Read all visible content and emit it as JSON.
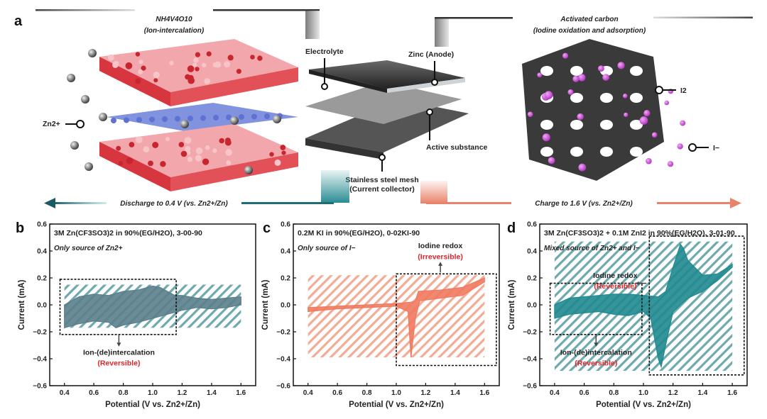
{
  "panel_a": {
    "letter": "a",
    "left_title": "NH4V4O10",
    "left_subtitle": "(Ion-intercalation)",
    "right_title": "Activated carbon",
    "right_subtitle": "(Iodine oxidation and adsorption)",
    "label_zn_ion": "Zn2+",
    "label_electrolyte": "Electrolyte",
    "label_zinc_anode": "Zinc (Anode)",
    "label_active_substance": "Active substance",
    "label_mesh_line1": "Stainless steel mesh",
    "label_mesh_line2": "(Current collector)",
    "label_i2": "I2",
    "label_iodide": "I−",
    "discharge_label": "Discharge to 0.4 V (vs. Zn2+/Zn)",
    "charge_label": "Charge to 1.6 V (vs. Zn2+/Zn)",
    "colors": {
      "discharge": "#1f6e73",
      "charge": "#e8826a",
      "crystal": "#e0424a",
      "carbon": "#3a3a3a",
      "iodine": "#c84ad8",
      "teal_fill": "#2a8d93"
    }
  },
  "chart_data": [
    {
      "type": "area",
      "panel": "b",
      "title": "3M Zn(CF3SO3)2 in 90%(EG/H2O), 3-00-90",
      "note": "Only source of Zn2+",
      "annotation": "Ion-(de)intercalation",
      "annotation_state": "(Reversible)",
      "xlabel": "Potential (V vs. Zn2+/Zn)",
      "ylabel": "Current (mA)",
      "xlim": [
        0.3,
        1.7
      ],
      "ylim": [
        -0.6,
        0.6
      ],
      "xticks": [
        "0.4",
        "0.6",
        "0.8",
        "1.0",
        "1.2",
        "1.4",
        "1.6"
      ],
      "yticks": [
        "0.6",
        "0.4",
        "0.2",
        "0.0",
        "−0.2",
        "−0.4",
        "−0.6"
      ],
      "fill_color": "#5b7f8b",
      "upper": {
        "x": [
          0.4,
          0.5,
          0.6,
          0.7,
          0.8,
          0.9,
          1.0,
          1.05,
          1.1,
          1.15,
          1.2,
          1.3,
          1.4,
          1.5,
          1.6
        ],
        "y": [
          0.0,
          0.06,
          0.08,
          0.07,
          0.1,
          0.11,
          0.14,
          0.13,
          0.1,
          0.07,
          0.07,
          0.05,
          0.04,
          0.05,
          0.06
        ]
      },
      "lower": {
        "x": [
          1.6,
          1.5,
          1.4,
          1.3,
          1.2,
          1.1,
          1.0,
          0.9,
          0.8,
          0.75,
          0.7,
          0.6,
          0.5,
          0.4
        ],
        "y": [
          0.0,
          -0.02,
          -0.03,
          -0.02,
          -0.04,
          -0.07,
          -0.1,
          -0.13,
          -0.15,
          -0.17,
          -0.13,
          -0.12,
          -0.14,
          -0.17
        ]
      },
      "highlight_box": {
        "x": [
          0.37,
          1.16
        ],
        "y": [
          -0.22,
          0.19
        ]
      },
      "hatch_box": {
        "x": [
          0.4,
          1.6
        ],
        "y": [
          -0.17,
          0.15
        ]
      }
    },
    {
      "type": "area",
      "panel": "c",
      "title": "0.2M KI in 90%(EG/H2O), 0-02KI-90",
      "note": "Only source of I−",
      "annotation": "Iodine redox",
      "annotation_state": "(Irreversible)",
      "xlabel": "Potential (V vs. Zn2+/Zn)",
      "ylabel": "Current (mA)",
      "xlim": [
        0.3,
        1.7
      ],
      "ylim": [
        -0.6,
        0.6
      ],
      "xticks": [
        "0.4",
        "0.6",
        "0.8",
        "1.0",
        "1.2",
        "1.4",
        "1.6"
      ],
      "yticks": [
        "0.6",
        "0.4",
        "0.2",
        "0.0",
        "−0.2",
        "−0.4",
        "−0.6"
      ],
      "fill_color": "#ef7a5f",
      "upper": {
        "x": [
          0.4,
          0.6,
          0.8,
          1.0,
          1.1,
          1.13,
          1.15,
          1.3,
          1.45,
          1.6
        ],
        "y": [
          -0.02,
          -0.01,
          0.0,
          0.01,
          0.02,
          0.03,
          0.1,
          0.11,
          0.13,
          0.2
        ]
      },
      "lower": {
        "x": [
          1.6,
          1.45,
          1.3,
          1.16,
          1.13,
          1.1,
          1.08,
          1.0,
          0.8,
          0.6,
          0.4
        ],
        "y": [
          0.17,
          0.07,
          0.05,
          0.03,
          -0.1,
          -0.39,
          -0.05,
          -0.01,
          -0.02,
          -0.03,
          -0.05
        ]
      },
      "highlight_box": {
        "x": [
          1.0,
          1.68
        ],
        "y": [
          -0.45,
          0.23
        ]
      },
      "hatch_box": {
        "x": [
          0.4,
          1.6
        ],
        "y": [
          -0.39,
          0.22
        ]
      }
    },
    {
      "type": "area",
      "panel": "d",
      "title": "3M Zn(CF3SO3)2 + 0.1M ZnI2 in 90%(EG/H2O), 3-01-90",
      "note": "Mixed source of Zn2+ and I−",
      "annotation": "Iodine redox",
      "annotation_state": "(Reversible)",
      "annotation2": "Ion-(de)intercalation",
      "annotation2_state": "(Reversible)",
      "xlabel": "Potential (V vs. Zn2+/Zn)",
      "ylabel": "Current (mA)",
      "xlim": [
        0.3,
        1.7
      ],
      "ylim": [
        -0.6,
        0.6
      ],
      "xticks": [
        "0.4",
        "0.6",
        "0.8",
        "1.0",
        "1.2",
        "1.4",
        "1.6"
      ],
      "yticks": [
        "0.6",
        "0.4",
        "0.2",
        "0.0",
        "−0.2",
        "−0.4",
        "−0.6"
      ],
      "fill_color": "#1f8a8f",
      "upper": {
        "x": [
          0.4,
          0.5,
          0.6,
          0.7,
          0.8,
          0.9,
          1.0,
          1.1,
          1.15,
          1.2,
          1.25,
          1.27,
          1.3,
          1.4,
          1.5,
          1.6
        ],
        "y": [
          0.0,
          0.05,
          0.06,
          0.07,
          0.08,
          0.08,
          0.07,
          0.06,
          0.1,
          0.28,
          0.45,
          0.42,
          0.33,
          0.22,
          0.23,
          0.3
        ]
      },
      "lower": {
        "x": [
          1.6,
          1.5,
          1.4,
          1.3,
          1.2,
          1.15,
          1.12,
          1.1,
          1.05,
          1.0,
          0.9,
          0.8,
          0.7,
          0.6,
          0.5,
          0.4
        ],
        "y": [
          0.28,
          0.18,
          0.1,
          0.05,
          -0.05,
          -0.3,
          -0.46,
          -0.4,
          -0.1,
          -0.05,
          -0.08,
          -0.07,
          -0.05,
          -0.06,
          -0.07,
          -0.1
        ]
      },
      "highlight_box": {
        "x": [
          0.37,
          0.99
        ],
        "y": [
          -0.22,
          0.16
        ]
      },
      "highlight_box2": {
        "x": [
          1.04,
          1.68
        ],
        "y": [
          -0.52,
          0.51
        ]
      },
      "hatch_box": {
        "x": [
          0.4,
          1.6
        ],
        "y": [
          -0.49,
          0.47
        ]
      }
    }
  ]
}
